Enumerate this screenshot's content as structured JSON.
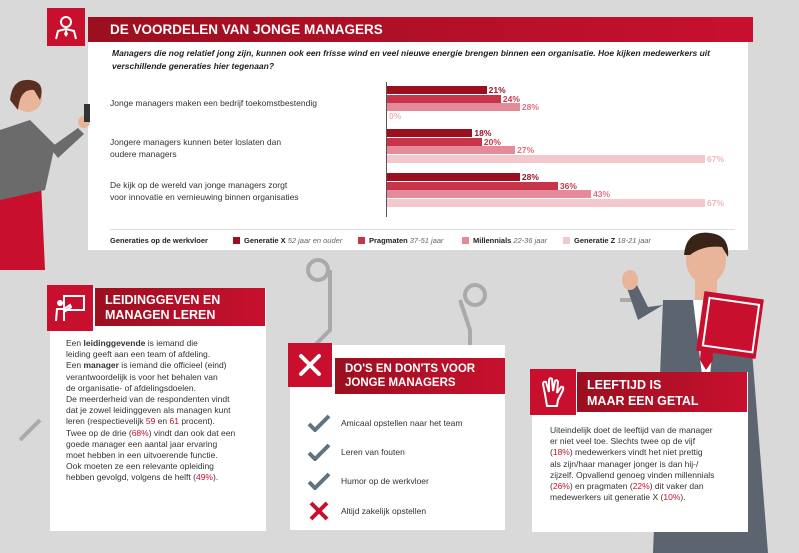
{
  "title": "DE VOORDELEN VAN JONGE MANAGERS",
  "intro": "Managers die nog relatief jong zijn, kunnen ook een frisse wind en veel nieuwe energie brengen binnen een organisatie. Hoe kijken medewerkers uit verschillende generaties hier tegenaan?",
  "colors": {
    "gen_x": "#9b0f1f",
    "pragmaten": "#c8354b",
    "millennials": "#e58a98",
    "gen_z": "#f4c7cd"
  },
  "chart_data": {
    "type": "bar",
    "orientation": "horizontal",
    "categories": [
      "Jonge managers maken een bedrijf toekomstbestendig",
      "Jongere managers kunnen beter loslaten dan oudere managers",
      "De kijk op de wereld van jonge managers zorgt voor innovatie en vernieuwing binnen organisaties"
    ],
    "series": [
      {
        "name": "Generatie X",
        "values": [
          21,
          18,
          28
        ]
      },
      {
        "name": "Pragmaten",
        "values": [
          24,
          20,
          36
        ]
      },
      {
        "name": "Millennials",
        "values": [
          28,
          27,
          43
        ]
      },
      {
        "name": "Generatie Z",
        "values": [
          0,
          67,
          67
        ]
      }
    ],
    "xlim": [
      0,
      67
    ]
  },
  "questions": {
    "q1": "Jonge managers maken een bedrijf toekomstbestendig",
    "q2a": "Jongere managers kunnen beter loslaten dan",
    "q2b": "oudere managers",
    "q3a": "De kijk op de wereld van jonge managers zorgt",
    "q3b": "voor innovatie en vernieuwing binnen organisaties"
  },
  "labels": {
    "q1": [
      "21%",
      "24%",
      "28%",
      "0%"
    ],
    "q2": [
      "18%",
      "20%",
      "27%",
      "67%"
    ],
    "q3": [
      "28%",
      "36%",
      "43%",
      "67%"
    ]
  },
  "legend": {
    "title": "Generaties op de werkvloer",
    "items": [
      {
        "name": "Generatie X",
        "range": "52 jaar en ouder"
      },
      {
        "name": "Pragmaten",
        "range": "37-51 jaar"
      },
      {
        "name": "Millennials",
        "range": "22-36 jaar"
      },
      {
        "name": "Generatie Z",
        "range": "18-21 jaar"
      }
    ]
  },
  "leiding": {
    "title1": "LEIDINGGEVEN EN",
    "title2": "MANAGEN LEREN",
    "p1": [
      "Een ",
      "leidinggevende",
      " is iemand die",
      "leiding geeft aan een team of afdeling."
    ],
    "p2": [
      "Een ",
      "manager",
      " is iemand die officieel (eind)",
      "verantwoordelijk is voor het behalen van",
      "de organisatie- of afdelingsdoelen."
    ],
    "p3": [
      "De meerderheid van de respondenten vindt",
      "dat je zowel leidinggeven als managen kunt",
      "leren (respectievelijk ",
      "59",
      " en ",
      "61",
      " procent)."
    ],
    "p4": [
      "Twee op de drie (",
      "68%",
      ") vindt dan ook dat een",
      "goede manager een aantal jaar ervaring",
      "moet hebben in een uitvoerende functie.",
      "Ook moeten ze een relevante opleiding",
      "hebben gevolgd, volgens de helft (",
      "49%",
      ")."
    ]
  },
  "dos": {
    "title1": "DO'S EN DON'TS VOOR",
    "title2": "JONGE MANAGERS",
    "items": [
      "Amicaal opstellen naar het team",
      "Leren van fouten",
      "Humor op de werkvloer",
      "Altijd zakelijk opstellen"
    ]
  },
  "leeftijd": {
    "title1": "LEEFTIJD IS",
    "title2": "MAAR EEN GETAL",
    "lines": [
      "Uiteindelijk doet de leeftijd van de manager",
      "er niet veel toe. Slechts twee op de vijf"
    ],
    "l3": [
      "(",
      "18%",
      ") medewerkers vindt het niet prettig"
    ],
    "l4": "als zijn/haar manager jonger is dan hij-/",
    "l5": "zijzelf. Opvallend genoeg vinden millennials",
    "l6": [
      "(",
      "26%",
      ") en pragmaten (",
      "22%",
      ") dit vaker dan"
    ],
    "l7": [
      "medewerkers uit generatie X (",
      "10%",
      ")."
    ]
  }
}
